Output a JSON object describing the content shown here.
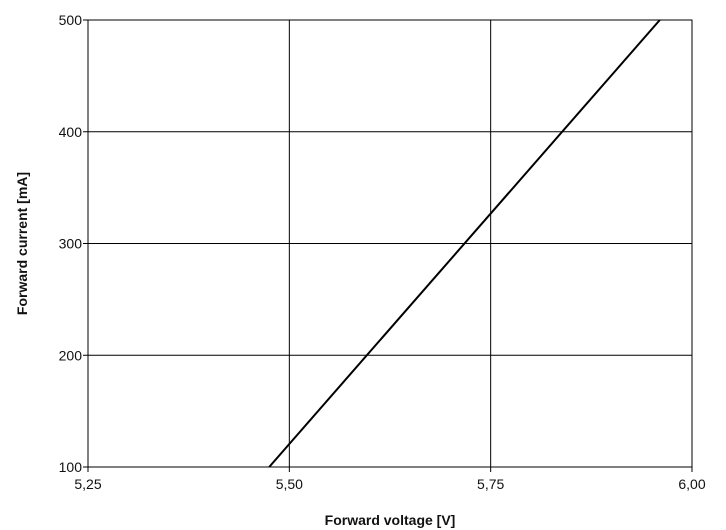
{
  "chart_data": {
    "type": "line",
    "title": "",
    "xlabel": "Forward voltage [V]",
    "ylabel": "Forward current [mA]",
    "xlim": [
      5.25,
      6.0
    ],
    "ylim": [
      100,
      500
    ],
    "x_ticks": [
      5.25,
      5.5,
      5.75,
      6.0
    ],
    "x_tick_labels": [
      "5,25",
      "5,50",
      "5,75",
      "6,00"
    ],
    "y_ticks": [
      100,
      200,
      300,
      400,
      500
    ],
    "y_tick_labels": [
      "100",
      "200",
      "300",
      "400",
      "500"
    ],
    "grid": true,
    "legend": "none",
    "series": [
      {
        "x": [
          5.475,
          5.96
        ],
        "y": [
          100,
          500
        ],
        "color": "#000000"
      }
    ]
  }
}
